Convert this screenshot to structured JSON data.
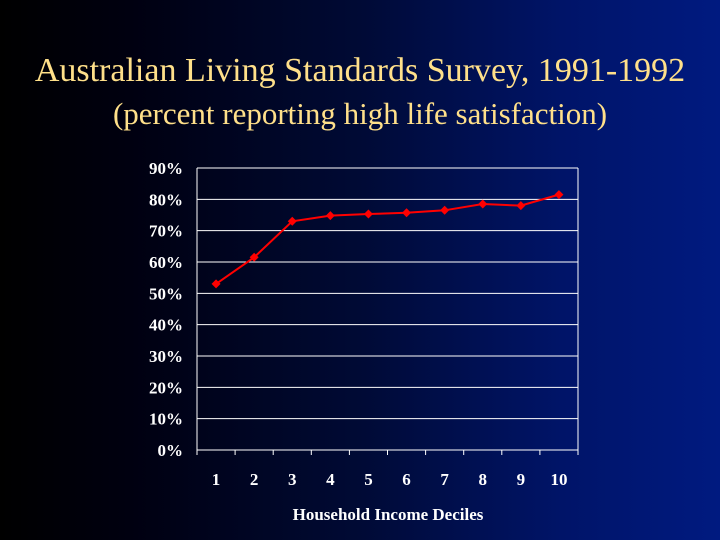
{
  "slide": {
    "title": "Australian Living Standards Survey, 1991-1992",
    "subtitle": "(percent reporting high life satisfaction)"
  },
  "chart_data": {
    "type": "line",
    "categories": [
      "1",
      "2",
      "3",
      "4",
      "5",
      "6",
      "7",
      "8",
      "9",
      "10"
    ],
    "series": [
      {
        "values": [
          53,
          61.5,
          73,
          74.8,
          75.3,
          75.7,
          76.5,
          78.5,
          78,
          81.5
        ],
        "color": "#ff0000"
      }
    ],
    "xlabel": "Household Income Deciles",
    "ylabel": "",
    "ylim": [
      0,
      90
    ],
    "yticks": [
      "0%",
      "10%",
      "20%",
      "30%",
      "40%",
      "50%",
      "60%",
      "70%",
      "80%",
      "90%"
    ],
    "grid": true,
    "legend": "none",
    "colors": {
      "title": "#ffe08a",
      "gridline": "#ffffff",
      "axis_text": "#ffffff"
    }
  }
}
